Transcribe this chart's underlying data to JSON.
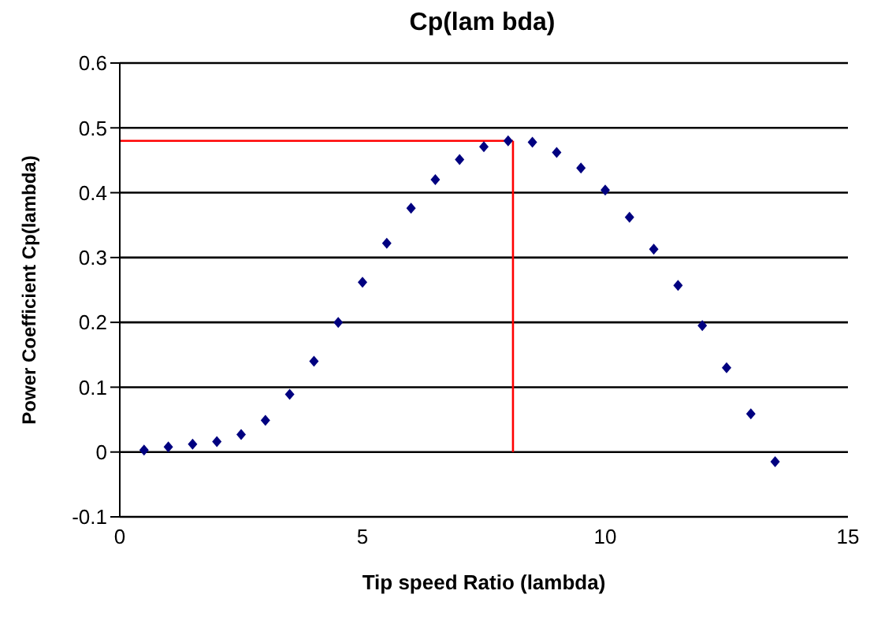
{
  "chart_data": {
    "type": "scatter",
    "title": "Cp(lam bda)",
    "xlabel": "Tip speed Ratio (lambda)",
    "ylabel": "Power Coefficient Cp(lambda)",
    "x": [
      0.5,
      1,
      1.5,
      2,
      2.5,
      3,
      3.5,
      4,
      4.5,
      5,
      5.5,
      6,
      6.5,
      7,
      7.5,
      8,
      8.5,
      9,
      9.5,
      10,
      10.5,
      11,
      11.5,
      12,
      12.5,
      13,
      13.5
    ],
    "values": [
      0.003,
      0.008,
      0.012,
      0.016,
      0.027,
      0.049,
      0.089,
      0.14,
      0.2,
      0.262,
      0.322,
      0.376,
      0.42,
      0.451,
      0.471,
      0.48,
      0.478,
      0.462,
      0.438,
      0.404,
      0.362,
      0.313,
      0.257,
      0.195,
      0.13,
      0.059,
      -0.015
    ],
    "color": "#000080",
    "marker": "diamond",
    "xlim": [
      0,
      15
    ],
    "xticks": [
      0,
      5,
      10,
      15
    ],
    "ylim": [
      -0.1,
      0.6
    ],
    "yticks": [
      -0.1,
      0,
      0.1,
      0.2,
      0.3,
      0.4,
      0.5,
      0.6
    ],
    "grid": "y",
    "ref_lines": [
      {
        "axis": "y",
        "value": 0.48,
        "color": "#ff0000"
      },
      {
        "axis": "x",
        "value": 8.1,
        "color": "#ff0000"
      }
    ]
  }
}
